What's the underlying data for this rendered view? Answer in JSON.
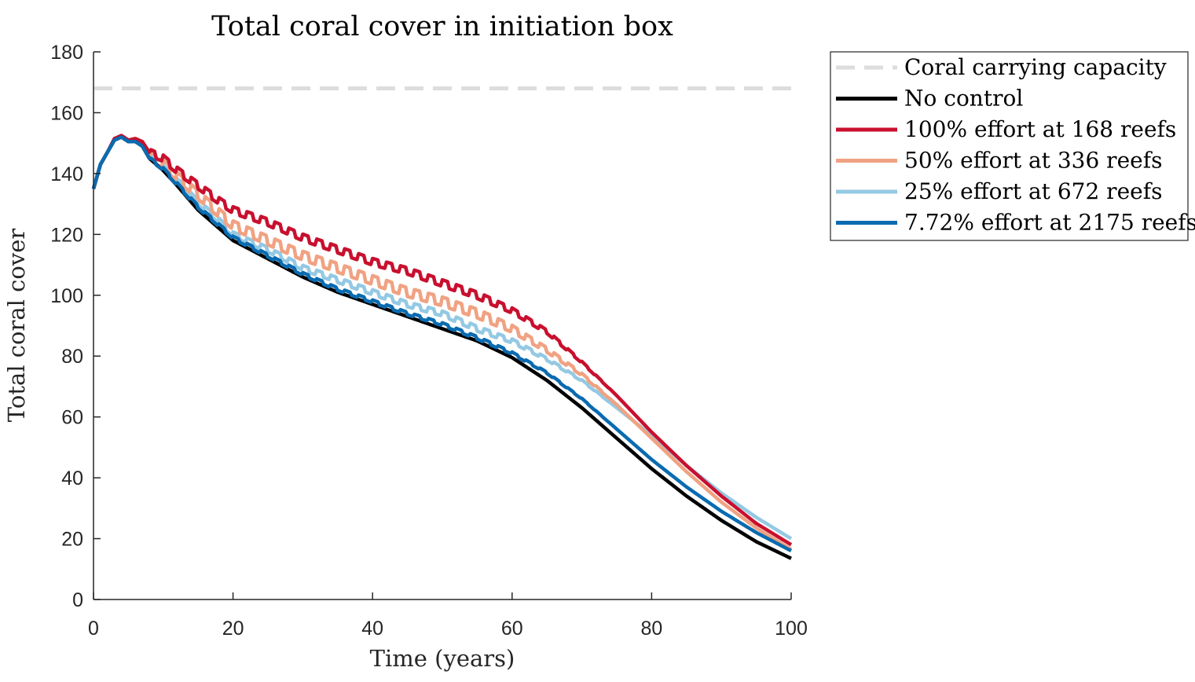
{
  "chart_data": {
    "type": "line",
    "title": "Total coral cover in initiation box",
    "xlabel": "Time (years)",
    "ylabel": "Total coral cover",
    "xlim": [
      0,
      100
    ],
    "ylim": [
      0,
      180
    ],
    "xticks": [
      0,
      20,
      40,
      60,
      80,
      100
    ],
    "yticks": [
      0,
      20,
      40,
      60,
      80,
      100,
      120,
      140,
      160,
      180
    ],
    "grid": false,
    "legend_position": "outside-top-right",
    "reference_line": {
      "name": "Coral carrying capacity",
      "y": 168,
      "color": "#dddddd",
      "style": "dashed"
    },
    "series": [
      {
        "name": "No control",
        "color": "#000000",
        "anchors": [
          [
            0,
            135
          ],
          [
            1,
            143
          ],
          [
            2,
            147
          ],
          [
            3,
            151
          ],
          [
            4,
            152
          ],
          [
            5,
            150.5
          ],
          [
            6,
            150.5
          ],
          [
            7,
            149
          ],
          [
            8,
            145
          ],
          [
            10,
            141
          ],
          [
            12,
            136
          ],
          [
            15,
            128
          ],
          [
            18,
            122
          ],
          [
            20,
            118
          ],
          [
            25,
            112
          ],
          [
            30,
            106
          ],
          [
            35,
            101
          ],
          [
            40,
            97
          ],
          [
            45,
            93
          ],
          [
            50,
            89
          ],
          [
            55,
            85
          ],
          [
            60,
            79.5
          ],
          [
            65,
            72
          ],
          [
            70,
            63
          ],
          [
            75,
            53
          ],
          [
            80,
            43
          ],
          [
            85,
            34
          ],
          [
            90,
            26
          ],
          [
            95,
            19
          ],
          [
            100,
            13.5
          ]
        ]
      },
      {
        "name": "100% effort at 168 reefs",
        "color": "#c8102e",
        "anchors": [
          [
            0,
            135
          ],
          [
            1,
            143
          ],
          [
            2,
            147
          ],
          [
            3,
            151.5
          ],
          [
            4,
            152.5
          ],
          [
            5,
            151
          ],
          [
            6,
            151.5
          ],
          [
            7,
            150.5
          ],
          [
            8,
            147
          ],
          [
            10,
            145
          ],
          [
            12,
            141
          ],
          [
            15,
            136
          ],
          [
            18,
            131
          ],
          [
            20,
            128
          ],
          [
            25,
            124
          ],
          [
            30,
            119
          ],
          [
            35,
            115
          ],
          [
            40,
            111
          ],
          [
            45,
            108
          ],
          [
            50,
            104
          ],
          [
            55,
            100
          ],
          [
            60,
            95
          ],
          [
            65,
            88
          ],
          [
            70,
            78
          ],
          [
            75,
            67
          ],
          [
            80,
            55
          ],
          [
            85,
            44
          ],
          [
            90,
            34
          ],
          [
            95,
            25
          ],
          [
            100,
            18
          ]
        ]
      },
      {
        "name": "50% effort at 336 reefs",
        "color": "#f0a282",
        "anchors": [
          [
            0,
            135
          ],
          [
            1,
            143
          ],
          [
            2,
            147
          ],
          [
            3,
            151
          ],
          [
            4,
            152
          ],
          [
            5,
            150.5
          ],
          [
            6,
            151
          ],
          [
            7,
            150
          ],
          [
            8,
            146
          ],
          [
            10,
            143
          ],
          [
            12,
            139
          ],
          [
            15,
            133
          ],
          [
            18,
            127
          ],
          [
            20,
            123
          ],
          [
            25,
            118
          ],
          [
            30,
            113
          ],
          [
            35,
            109
          ],
          [
            40,
            105
          ],
          [
            45,
            101
          ],
          [
            50,
            98
          ],
          [
            55,
            94
          ],
          [
            60,
            89
          ],
          [
            65,
            82
          ],
          [
            70,
            74
          ],
          [
            75,
            64
          ],
          [
            80,
            53
          ],
          [
            85,
            42
          ],
          [
            90,
            32
          ],
          [
            95,
            23.5
          ],
          [
            100,
            16.5
          ]
        ]
      },
      {
        "name": "25% effort at 672 reefs",
        "color": "#94c9e3",
        "anchors": [
          [
            0,
            135
          ],
          [
            1,
            143
          ],
          [
            2,
            147
          ],
          [
            3,
            151
          ],
          [
            4,
            152
          ],
          [
            5,
            150.5
          ],
          [
            6,
            150.5
          ],
          [
            7,
            149.5
          ],
          [
            8,
            145.5
          ],
          [
            10,
            142
          ],
          [
            12,
            137.5
          ],
          [
            15,
            130.5
          ],
          [
            18,
            124.5
          ],
          [
            20,
            120
          ],
          [
            25,
            115
          ],
          [
            30,
            109
          ],
          [
            35,
            105
          ],
          [
            40,
            101
          ],
          [
            45,
            97
          ],
          [
            50,
            94
          ],
          [
            55,
            89
          ],
          [
            60,
            85
          ],
          [
            65,
            79
          ],
          [
            70,
            72
          ],
          [
            75,
            63
          ],
          [
            80,
            54
          ],
          [
            85,
            44
          ],
          [
            90,
            35
          ],
          [
            95,
            27
          ],
          [
            100,
            20
          ]
        ]
      },
      {
        "name": "7.72% effort at 2175 reefs",
        "color": "#0a6bb0",
        "anchors": [
          [
            0,
            135
          ],
          [
            1,
            143
          ],
          [
            2,
            147
          ],
          [
            3,
            151
          ],
          [
            4,
            152
          ],
          [
            5,
            150.5
          ],
          [
            6,
            150.5
          ],
          [
            7,
            149
          ],
          [
            8,
            145
          ],
          [
            10,
            141.5
          ],
          [
            12,
            136.5
          ],
          [
            15,
            129
          ],
          [
            18,
            123
          ],
          [
            20,
            119
          ],
          [
            25,
            113
          ],
          [
            30,
            107
          ],
          [
            35,
            102
          ],
          [
            40,
            98
          ],
          [
            45,
            94
          ],
          [
            50,
            90.5
          ],
          [
            55,
            86
          ],
          [
            60,
            81
          ],
          [
            65,
            74.5
          ],
          [
            70,
            66
          ],
          [
            75,
            56
          ],
          [
            80,
            46
          ],
          [
            85,
            37
          ],
          [
            90,
            29
          ],
          [
            95,
            22
          ],
          [
            100,
            16
          ]
        ]
      }
    ],
    "seasonal_wobble": {
      "amplitudes": [
        0,
        1.2,
        1.6,
        0.9,
        0.5
      ],
      "period_years": 2,
      "fade_start": 56,
      "fade_end": 75
    }
  }
}
